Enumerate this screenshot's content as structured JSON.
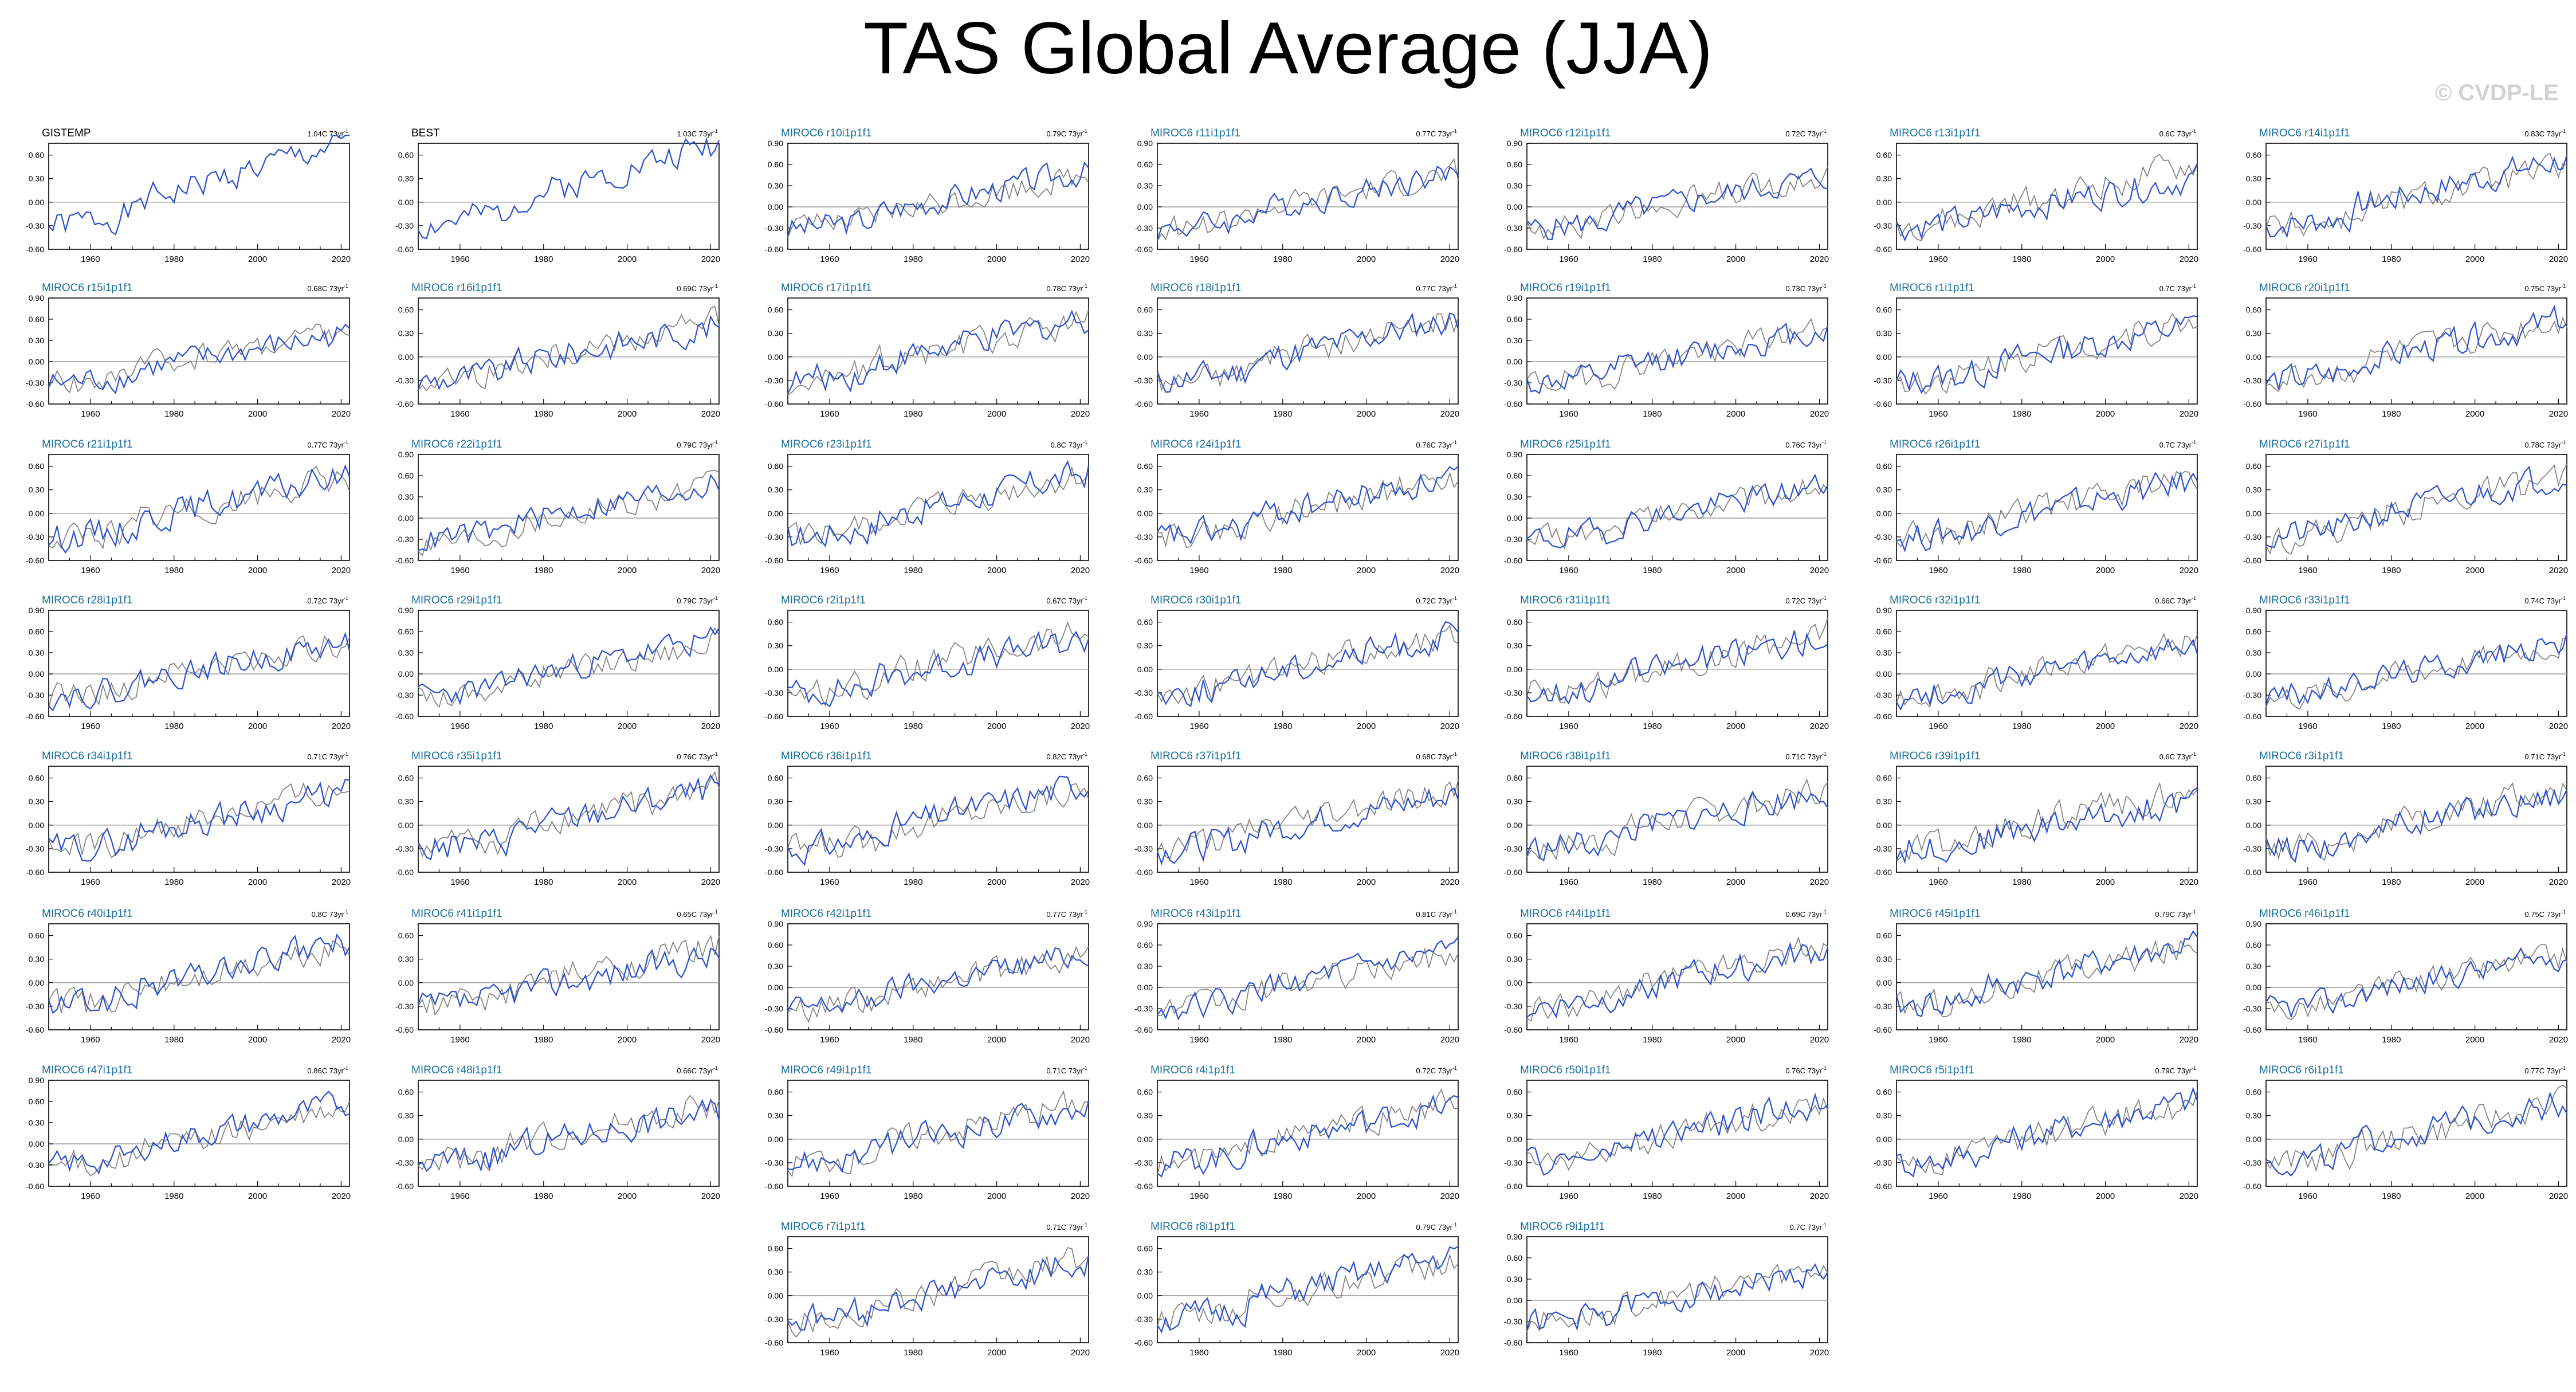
{
  "page": {
    "title": "TAS Global Average (JJA)",
    "watermark": "© CVDP-LE"
  },
  "colors": {
    "model": "#2b4fd0",
    "obs_ref": "#7c7c7c",
    "obs_title": "#000000",
    "model_title": "#1a6e9e",
    "zero_line": "#9a9a9a"
  },
  "chart_data": {
    "type": "line",
    "x_range": [
      1950,
      2022
    ],
    "x_ticks": [
      "1960",
      "1980",
      "2000",
      "2020"
    ],
    "y_ticks_standard": [
      "0.60",
      "0.30",
      "0.00",
      "-0.30",
      "-0.60"
    ],
    "y_ticks_extended": [
      "0.90",
      "0.60",
      "0.30",
      "0.00",
      "-0.30",
      "-0.60"
    ],
    "trend_unit": "73yr",
    "panels": [
      {
        "title": "GISTEMP",
        "trend": "1.04C",
        "obs": true,
        "seed": 1
      },
      {
        "title": "BEST",
        "trend": "1.03C",
        "obs": true,
        "seed": 2
      },
      {
        "title": "MIROC6 r10i1p1f1",
        "trend": "0.79C",
        "seed": 3,
        "ext": true
      },
      {
        "title": "MIROC6 r11i1p1f1",
        "trend": "0.77C",
        "seed": 4,
        "ext": true
      },
      {
        "title": "MIROC6 r12i1p1f1",
        "trend": "0.72C",
        "seed": 5,
        "ext": true
      },
      {
        "title": "MIROC6 r13i1p1f1",
        "trend": "0.6C",
        "seed": 6
      },
      {
        "title": "MIROC6 r14i1p1f1",
        "trend": "0.83C",
        "seed": 7
      },
      {
        "title": "MIROC6 r15i1p1f1",
        "trend": "0.68C",
        "seed": 8,
        "ext": true
      },
      {
        "title": "MIROC6 r16i1p1f1",
        "trend": "0.69C",
        "seed": 9
      },
      {
        "title": "MIROC6 r17i1p1f1",
        "trend": "0.78C",
        "seed": 10
      },
      {
        "title": "MIROC6 r18i1p1f1",
        "trend": "0.77C",
        "seed": 11
      },
      {
        "title": "MIROC6 r19i1p1f1",
        "trend": "0.73C",
        "seed": 12,
        "ext": true
      },
      {
        "title": "MIROC6 r1i1p1f1",
        "trend": "0.7C",
        "seed": 13
      },
      {
        "title": "MIROC6 r20i1p1f1",
        "trend": "0.75C",
        "seed": 14
      },
      {
        "title": "MIROC6 r21i1p1f1",
        "trend": "0.77C",
        "seed": 15
      },
      {
        "title": "MIROC6 r22i1p1f1",
        "trend": "0.79C",
        "seed": 16,
        "ext": true
      },
      {
        "title": "MIROC6 r23i1p1f1",
        "trend": "0.8C",
        "seed": 17
      },
      {
        "title": "MIROC6 r24i1p1f1",
        "trend": "0.76C",
        "seed": 18
      },
      {
        "title": "MIROC6 r25i1p1f1",
        "trend": "0.76C",
        "seed": 19,
        "ext": true
      },
      {
        "title": "MIROC6 r26i1p1f1",
        "trend": "0.7C",
        "seed": 20
      },
      {
        "title": "MIROC6 r27i1p1f1",
        "trend": "0.78C",
        "seed": 21
      },
      {
        "title": "MIROC6 r28i1p1f1",
        "trend": "0.72C",
        "seed": 22,
        "ext": true
      },
      {
        "title": "MIROC6 r29i1p1f1",
        "trend": "0.79C",
        "seed": 23,
        "ext": true
      },
      {
        "title": "MIROC6 r2i1p1f1",
        "trend": "0.67C",
        "seed": 24
      },
      {
        "title": "MIROC6 r30i1p1f1",
        "trend": "0.72C",
        "seed": 25
      },
      {
        "title": "MIROC6 r31i1p1f1",
        "trend": "0.72C",
        "seed": 26
      },
      {
        "title": "MIROC6 r32i1p1f1",
        "trend": "0.66C",
        "seed": 27,
        "ext": true
      },
      {
        "title": "MIROC6 r33i1p1f1",
        "trend": "0.74C",
        "seed": 28,
        "ext": true
      },
      {
        "title": "MIROC6 r34i1p1f1",
        "trend": "0.71C",
        "seed": 29
      },
      {
        "title": "MIROC6 r35i1p1f1",
        "trend": "0.76C",
        "seed": 30
      },
      {
        "title": "MIROC6 r36i1p1f1",
        "trend": "0.82C",
        "seed": 31
      },
      {
        "title": "MIROC6 r37i1p1f1",
        "trend": "0.68C",
        "seed": 32
      },
      {
        "title": "MIROC6 r38i1p1f1",
        "trend": "0.71C",
        "seed": 33
      },
      {
        "title": "MIROC6 r39i1p1f1",
        "trend": "0.6C",
        "seed": 34
      },
      {
        "title": "MIROC6 r3i1p1f1",
        "trend": "0.71C",
        "seed": 35
      },
      {
        "title": "MIROC6 r40i1p1f1",
        "trend": "0.8C",
        "seed": 36
      },
      {
        "title": "MIROC6 r41i1p1f1",
        "trend": "0.65C",
        "seed": 37
      },
      {
        "title": "MIROC6 r42i1p1f1",
        "trend": "0.77C",
        "seed": 38,
        "ext": true
      },
      {
        "title": "MIROC6 r43i1p1f1",
        "trend": "0.81C",
        "seed": 39,
        "ext": true
      },
      {
        "title": "MIROC6 r44i1p1f1",
        "trend": "0.69C",
        "seed": 40
      },
      {
        "title": "MIROC6 r45i1p1f1",
        "trend": "0.79C",
        "seed": 41
      },
      {
        "title": "MIROC6 r46i1p1f1",
        "trend": "0.75C",
        "seed": 42,
        "ext": true
      },
      {
        "title": "MIROC6 r47i1p1f1",
        "trend": "0.86C",
        "seed": 43,
        "ext": true
      },
      {
        "title": "MIROC6 r48i1p1f1",
        "trend": "0.66C",
        "seed": 44
      },
      {
        "title": "MIROC6 r49i1p1f1",
        "trend": "0.71C",
        "seed": 45
      },
      {
        "title": "MIROC6 r4i1p1f1",
        "trend": "0.72C",
        "seed": 46
      },
      {
        "title": "MIROC6 r50i1p1f1",
        "trend": "0.76C",
        "seed": 47
      },
      {
        "title": "MIROC6 r5i1p1f1",
        "trend": "0.79C",
        "seed": 48
      },
      {
        "title": "MIROC6 r6i1p1f1",
        "trend": "0.77C",
        "seed": 49
      },
      {
        "title": "MIROC6 r7i1p1f1",
        "trend": "0.71C",
        "seed": 50
      },
      {
        "title": "MIROC6 r8i1p1f1",
        "trend": "0.79C",
        "seed": 51
      },
      {
        "title": "MIROC6 r9i1p1f1",
        "trend": "0.7C",
        "seed": 52,
        "ext": true
      }
    ]
  }
}
